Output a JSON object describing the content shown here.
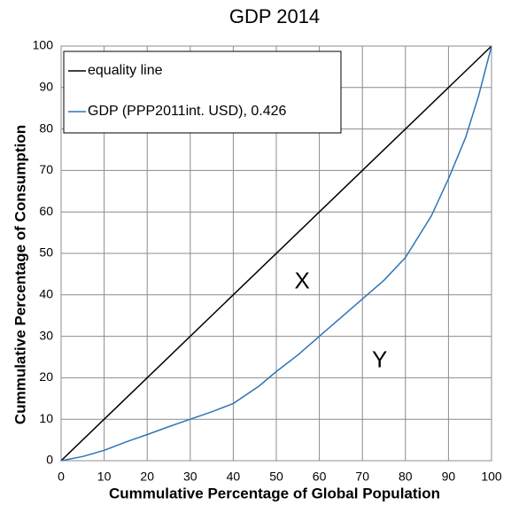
{
  "chart_data": {
    "type": "line",
    "title": "GDP 2014",
    "x_label": "Cummulative Percentage of Global Population",
    "y_label": "Cummulative Percentage of Consumption",
    "series": [
      {
        "name": "equality line",
        "color": "#000000",
        "x": [
          0,
          100
        ],
        "values": [
          0,
          100
        ]
      },
      {
        "name": "GDP (PPP2011int. USD), 0.426",
        "color": "#2e75b6",
        "x": [
          0,
          5,
          10,
          15,
          20,
          25,
          30,
          35,
          40,
          46,
          50,
          55,
          60,
          65,
          70,
          75,
          80,
          86,
          90,
          94,
          97,
          100
        ],
        "values": [
          0,
          1,
          2.5,
          4.5,
          6.3,
          8.2,
          10,
          11.8,
          13.8,
          18,
          21.5,
          25.5,
          30,
          34.5,
          39,
          43.5,
          49,
          59,
          68,
          78,
          88,
          100
        ]
      }
    ],
    "annotations": [
      {
        "text": "X",
        "x": 56,
        "y": 43
      },
      {
        "text": "Y",
        "x": 74,
        "y": 24
      }
    ],
    "xlim": [
      0,
      100
    ],
    "xticks": [
      0,
      10,
      20,
      30,
      40,
      50,
      60,
      70,
      80,
      90,
      100
    ],
    "ylim": [
      0,
      100
    ],
    "yticks": [
      0,
      10,
      20,
      30,
      40,
      50,
      60,
      70,
      80,
      90,
      100
    ],
    "grid": true,
    "legend": "upper left"
  }
}
